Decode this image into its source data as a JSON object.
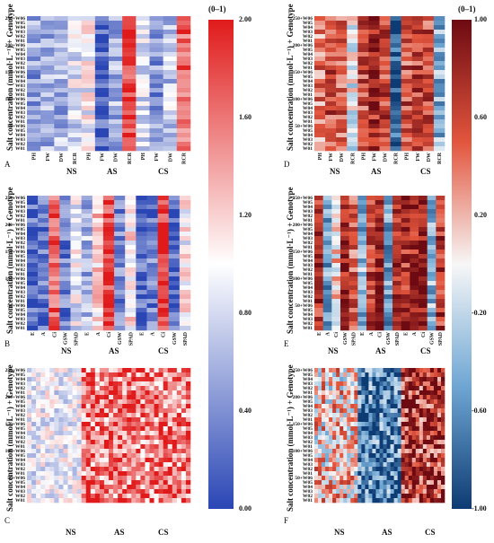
{
  "figure": {
    "ylabel": "Salt concentration (mmol·L⁻¹) + Genotype",
    "groups": [
      "NS",
      "AS",
      "CS"
    ]
  },
  "colorbars": [
    {
      "id": "left",
      "title": "(0–1)",
      "ticks": [
        "2.00",
        "1.60",
        "1.20",
        "0.80",
        "0.40",
        "0.00"
      ],
      "colors": [
        "#2a46b5",
        "#ffffff",
        "#e01a1a"
      ]
    },
    {
      "id": "right",
      "title": "(0–1)",
      "ticks": [
        "1.00",
        "0.60",
        "0.20",
        "-0.20",
        "-0.60",
        "-1.00"
      ],
      "colors": [
        "#0d3b73",
        "#6ea6d3",
        "#f7f7f7",
        "#e2553d",
        "#6d0a12"
      ]
    }
  ],
  "chart_data": [
    {
      "type": "heatmap",
      "panel": "A",
      "scale": "left",
      "vmin": 0,
      "vmax": 2,
      "ylabel": "Salt concentration (mmol·L⁻¹) + Genotype",
      "row_labels": [
        "250+W06",
        "W05",
        "W04",
        "W03",
        "W02",
        "W01",
        "200+W06",
        "W05",
        "W04",
        "W03",
        "W02",
        "W01",
        "150+W06",
        "W05",
        "W04",
        "W03",
        "W02",
        "W01",
        "100+W06",
        "W05",
        "W04",
        "W03",
        "W02",
        "W01",
        "50+W06",
        "W05",
        "W04",
        "W03",
        "W02",
        "W01"
      ],
      "column_labels": [
        "PH",
        "FW",
        "DW",
        "RCR",
        "PH",
        "FW",
        "DW",
        "RCR",
        "PH",
        "FW",
        "DW",
        "RCR"
      ],
      "groups": [
        "NS",
        "AS",
        "CS"
      ]
    },
    {
      "type": "heatmap",
      "panel": "B",
      "scale": "left",
      "vmin": 0,
      "vmax": 2,
      "ylabel": "Salt concentration (mmol·L⁻¹) + Genotype",
      "row_labels": [
        "250+W06",
        "W05",
        "W04",
        "W03",
        "W02",
        "W01",
        "200+W06",
        "W05",
        "W04",
        "W03",
        "W02",
        "W01",
        "150+W06",
        "W05",
        "W04",
        "W03",
        "W02",
        "W01",
        "100+W06",
        "W05",
        "W04",
        "W03",
        "W02",
        "W01",
        "50+W06",
        "W05",
        "W04",
        "W03",
        "W02",
        "W01"
      ],
      "column_labels": [
        "E",
        "A",
        "Ci",
        "GSW",
        "SPAD",
        "E",
        "A",
        "Ci",
        "GSW",
        "SPAD",
        "E",
        "A",
        "Ci",
        "GSW",
        "SPAD"
      ],
      "groups": [
        "NS",
        "AS",
        "CS"
      ]
    },
    {
      "type": "heatmap",
      "panel": "C",
      "scale": "left",
      "vmin": 0,
      "vmax": 2,
      "ylabel": "Salt concentration (mmol·L⁻¹) + Genotype",
      "row_labels": [
        "250+W06",
        "W05",
        "W04",
        "W03",
        "W02",
        "W01",
        "200+W06",
        "W05",
        "W04",
        "W03",
        "W02",
        "W01",
        "150+W06",
        "W05",
        "W04",
        "W03",
        "W02",
        "W01",
        "100+W06",
        "W05",
        "W04",
        "W03",
        "W02",
        "W01",
        "50+W06",
        "W05",
        "W04",
        "W03",
        "W02",
        "W01"
      ],
      "column_count": 36,
      "groups": [
        "NS",
        "AS",
        "CS"
      ]
    },
    {
      "type": "heatmap",
      "panel": "D",
      "scale": "right",
      "vmin": -1,
      "vmax": 1,
      "ylabel": "Salt concentration (mmol·L⁻¹) + Genotype",
      "row_labels": [
        "250+W06",
        "W05",
        "W04",
        "W03",
        "W02",
        "W01",
        "200+W06",
        "W05",
        "W04",
        "W03",
        "W02",
        "W01",
        "150+W06",
        "W05",
        "W04",
        "W03",
        "W02",
        "W01",
        "100+W06",
        "W05",
        "W04",
        "W03",
        "W02",
        "W01",
        "50+W06",
        "W05",
        "W04",
        "W03",
        "W02",
        "W01"
      ],
      "column_labels": [
        "PH",
        "FW",
        "DW",
        "RCR",
        "PH",
        "FW",
        "DW",
        "RCR",
        "PH",
        "FW",
        "DW",
        "RCR"
      ],
      "groups": [
        "NS",
        "AS",
        "CS"
      ]
    },
    {
      "type": "heatmap",
      "panel": "E",
      "scale": "right",
      "vmin": -1,
      "vmax": 1,
      "ylabel": "Salt concentration (mmol·L⁻¹) + Genotype",
      "row_labels": [
        "250+W06",
        "W05",
        "W04",
        "W03",
        "W02",
        "W01",
        "200+W06",
        "W05",
        "W04",
        "W03",
        "W02",
        "W01",
        "150+W06",
        "W05",
        "W04",
        "W03",
        "W02",
        "W01",
        "100+W06",
        "W05",
        "W04",
        "W03",
        "W02",
        "W01",
        "50+W06",
        "W05",
        "W04",
        "W03",
        "W02",
        "W01"
      ],
      "column_labels": [
        "E",
        "A",
        "Ci",
        "GSW",
        "SPAD",
        "E",
        "A",
        "Ci",
        "GSW",
        "SPAD",
        "E",
        "A",
        "Ci",
        "GSW",
        "SPAD"
      ],
      "groups": [
        "NS",
        "AS",
        "CS"
      ]
    },
    {
      "type": "heatmap",
      "panel": "F",
      "scale": "right",
      "vmin": -1,
      "vmax": 1,
      "ylabel": "Salt concentration (mmol·L⁻¹) + Genotype",
      "row_labels": [
        "250+W06",
        "W05",
        "W04",
        "W03",
        "W02",
        "W01",
        "200+W06",
        "W05",
        "W04",
        "W03",
        "W02",
        "W01",
        "150+W06",
        "W05",
        "W04",
        "W03",
        "W02",
        "W01",
        "100+W06",
        "W05",
        "W04",
        "W03",
        "W02",
        "W01",
        "50+W06",
        "W05",
        "W04",
        "W03",
        "W02",
        "W01"
      ],
      "column_count": 36,
      "groups": [
        "NS",
        "AS",
        "CS"
      ]
    }
  ]
}
